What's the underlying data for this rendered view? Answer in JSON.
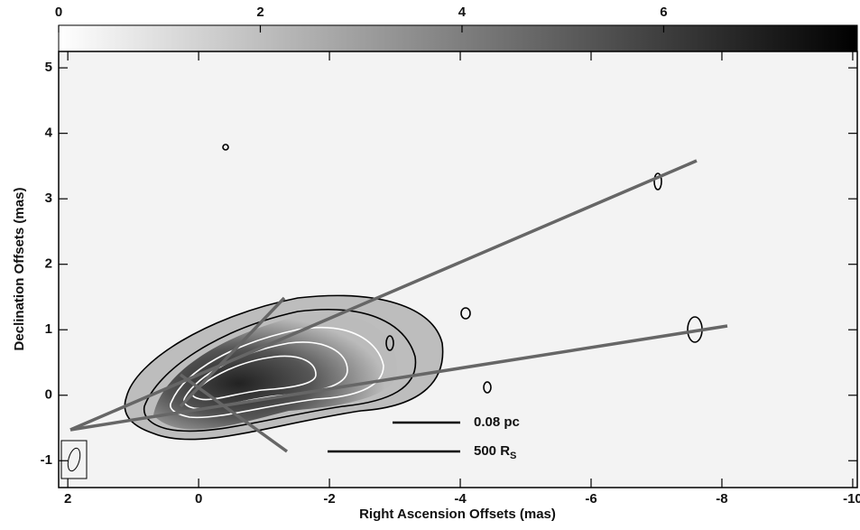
{
  "chart_data": {
    "type": "image",
    "xlabel": "Right Ascension Offsets (mas)",
    "ylabel": "Declination Offsets (mas)",
    "xlim": [
      2.14,
      -10.07
    ],
    "xticks": [
      2,
      0,
      -2,
      -4,
      -6,
      -8,
      -10
    ],
    "ylim": [
      -1.41,
      5.25
    ],
    "yticks": [
      -1,
      0,
      1,
      2,
      3,
      4,
      5
    ],
    "colorbar": {
      "lim": [
        0,
        7.92
      ],
      "ticks": [
        0,
        2,
        4,
        6
      ]
    },
    "scale_bars": [
      {
        "label": "0.08 pc"
      },
      {
        "label": "500 R",
        "subscript": "S"
      }
    ]
  }
}
